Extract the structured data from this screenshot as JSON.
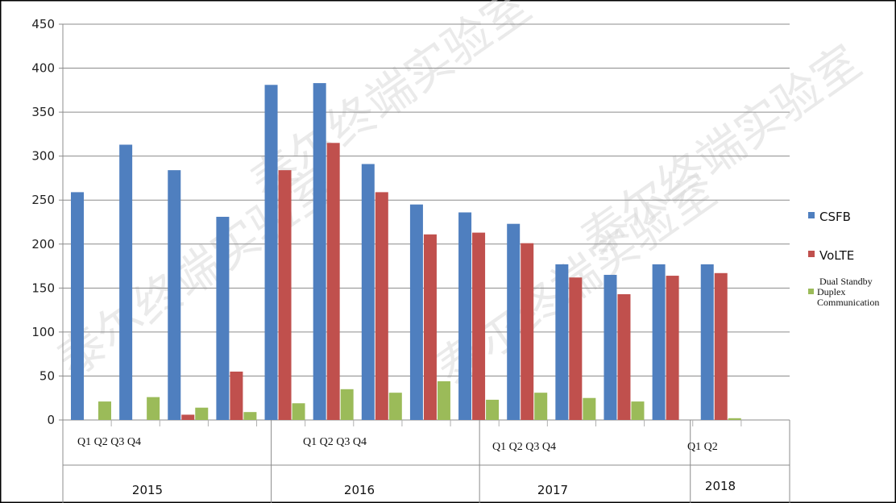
{
  "chart_data": {
    "type": "bar",
    "categories": [
      "",
      "",
      "",
      "",
      "",
      "",
      "",
      "",
      "",
      "",
      "",
      "",
      "",
      "",
      ""
    ],
    "series": [
      {
        "name": "CSFB",
        "color": "#4f7fbf",
        "values": [
          259,
          313,
          284,
          231,
          381,
          383,
          291,
          245,
          236,
          223,
          177,
          165,
          177,
          177,
          null
        ]
      },
      {
        "name": "VoLTE",
        "color": "#c0504d",
        "values": [
          null,
          null,
          6,
          55,
          284,
          315,
          259,
          211,
          213,
          201,
          162,
          143,
          164,
          167,
          null
        ]
      },
      {
        "name": "Dual Standby Duplex Communication",
        "color": "#9bbb59",
        "values": [
          21,
          26,
          14,
          9,
          19,
          35,
          31,
          44,
          23,
          31,
          25,
          21,
          null,
          2,
          null
        ]
      }
    ],
    "ylim": [
      0,
      450
    ],
    "yticks": [
      0,
      50,
      100,
      150,
      200,
      250,
      300,
      350,
      400,
      450
    ],
    "grid": true,
    "legend": "right",
    "quarter_labels": [
      {
        "text": "Q1 Q2 Q3 Q4"
      },
      {
        "text": "Q1 Q2 Q3 Q4"
      },
      {
        "text": "Q1 Q2 Q3 Q4"
      },
      {
        "text": "Q1 Q2"
      }
    ],
    "year_labels": [
      "2015",
      "2016",
      "2017",
      "2018"
    ],
    "watermark": "泰尔终端实验室"
  }
}
